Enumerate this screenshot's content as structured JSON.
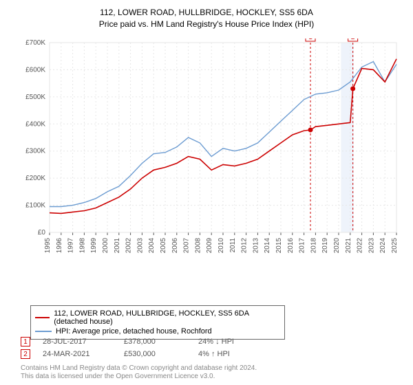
{
  "title_line1": "112, LOWER ROAD, HULLBRIDGE, HOCKLEY, SS5 6DA",
  "title_line2": "Price paid vs. HM Land Registry's House Price Index (HPI)",
  "chart": {
    "type": "line",
    "background_color": "#ffffff",
    "plot_border_color": "#e6e6e6",
    "grid_color": "#e6e6e6",
    "grid_dash": "2,3",
    "axis_color": "#555555",
    "tick_fontsize": 10,
    "tick_color": "#555555",
    "xlim": [
      1995,
      2025
    ],
    "ylim": [
      0,
      700000
    ],
    "ytick_step": 100000,
    "ytick_labels": [
      "£0",
      "£100K",
      "£200K",
      "£300K",
      "£400K",
      "£500K",
      "£600K",
      "£700K"
    ],
    "xtick_step": 1,
    "xtick_labels": [
      "1995",
      "1996",
      "1997",
      "1998",
      "1999",
      "2000",
      "2001",
      "2002",
      "2003",
      "2004",
      "2005",
      "2006",
      "2007",
      "2008",
      "2009",
      "2010",
      "2011",
      "2012",
      "2013",
      "2014",
      "2015",
      "2016",
      "2017",
      "2018",
      "2019",
      "2020",
      "2021",
      "2022",
      "2023",
      "2024",
      "2025"
    ],
    "shaded_region": {
      "x_start": 2020.2,
      "x_end": 2021.3,
      "fill": "#eef3fb"
    },
    "series": [
      {
        "name": "price_paid",
        "color": "#cc0000",
        "width": 1.6,
        "x": [
          1995,
          1996,
          1997,
          1998,
          1999,
          2000,
          2001,
          2002,
          2003,
          2004,
          2005,
          2006,
          2007,
          2008,
          2009,
          2010,
          2011,
          2012,
          2013,
          2014,
          2015,
          2016,
          2017,
          2017.56,
          2018,
          2019,
          2020,
          2021,
          2021.23,
          2022,
          2023,
          2024,
          2025
        ],
        "y": [
          72000,
          70000,
          75000,
          80000,
          90000,
          110000,
          130000,
          160000,
          200000,
          230000,
          240000,
          255000,
          280000,
          270000,
          230000,
          250000,
          245000,
          255000,
          270000,
          300000,
          330000,
          360000,
          375000,
          378000,
          390000,
          395000,
          400000,
          405000,
          530000,
          605000,
          600000,
          555000,
          640000
        ],
        "markers": [
          {
            "idx": 1,
            "x": 2017.56,
            "y": 378000,
            "label": "1",
            "label_color": "#cc0000",
            "label_border": "#cc0000"
          },
          {
            "idx": 2,
            "x": 2021.23,
            "y": 530000,
            "label": "2",
            "label_color": "#cc0000",
            "label_border": "#cc0000"
          }
        ]
      },
      {
        "name": "hpi",
        "color": "#6b9bd1",
        "width": 1.4,
        "x": [
          1995,
          1996,
          1997,
          1998,
          1999,
          2000,
          2001,
          2002,
          2003,
          2004,
          2005,
          2006,
          2007,
          2008,
          2009,
          2010,
          2011,
          2012,
          2013,
          2014,
          2015,
          2016,
          2017,
          2018,
          2019,
          2020,
          2021,
          2022,
          2023,
          2024,
          2025
        ],
        "y": [
          95000,
          95000,
          100000,
          110000,
          125000,
          150000,
          170000,
          210000,
          255000,
          290000,
          295000,
          315000,
          350000,
          330000,
          280000,
          310000,
          300000,
          310000,
          330000,
          370000,
          410000,
          450000,
          490000,
          510000,
          515000,
          525000,
          555000,
          610000,
          630000,
          555000,
          620000
        ]
      }
    ],
    "marker_lines": [
      {
        "x": 2017.56,
        "color": "#cc0000",
        "dash": "3,3"
      },
      {
        "x": 2021.23,
        "color": "#cc0000",
        "dash": "3,3"
      }
    ]
  },
  "legend": {
    "items": [
      {
        "color": "#cc0000",
        "label": "112, LOWER ROAD, HULLBRIDGE, HOCKLEY, SS5 6DA (detached house)"
      },
      {
        "color": "#6b9bd1",
        "label": "HPI: Average price, detached house, Rochford"
      }
    ]
  },
  "markers_table": {
    "rows": [
      {
        "num": "1",
        "date": "28-JUL-2017",
        "price": "£378,000",
        "pct": "24% ↓ HPI"
      },
      {
        "num": "2",
        "date": "24-MAR-2021",
        "price": "£530,000",
        "pct": "4% ↑ HPI"
      }
    ]
  },
  "footer_line1": "Contains HM Land Registry data © Crown copyright and database right 2024.",
  "footer_line2": "This data is licensed under the Open Government Licence v3.0."
}
